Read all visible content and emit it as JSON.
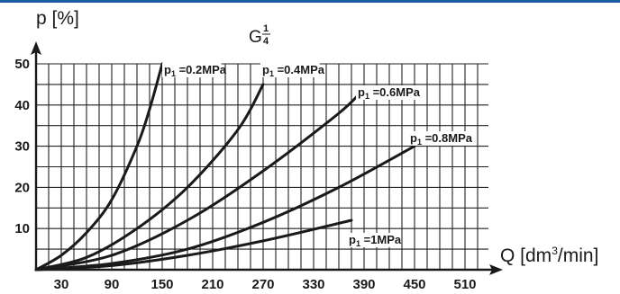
{
  "colors": {
    "accent_rule": "#1f5ca8",
    "ink": "#1a1a1a",
    "grid": "#222222"
  },
  "header": {
    "model_base": "G",
    "model_num": "1",
    "model_den": "4"
  },
  "chart_data": {
    "type": "line",
    "xlabel_main": "Q [dm",
    "xlabel_sup": "3",
    "xlabel_end": "/min]",
    "ylabel": "p [%]",
    "xlim": [
      0,
      560
    ],
    "ylim": [
      0,
      50
    ],
    "x_tick_values": [
      30,
      90,
      150,
      210,
      270,
      330,
      390,
      450,
      510
    ],
    "x_tick_labels": [
      "30",
      "90",
      "150",
      "210",
      "270",
      "330",
      "390",
      "450",
      "510"
    ],
    "y_tick_values": [
      10,
      20,
      30,
      40,
      50
    ],
    "y_tick_labels": [
      "10",
      "20",
      "30",
      "40",
      "50"
    ],
    "grid": true,
    "series": [
      {
        "name": "p₁=0.2MPa",
        "x": [
          0,
          30,
          60,
          90,
          120,
          135,
          150
        ],
        "y": [
          0,
          3.5,
          9,
          17,
          30,
          39,
          50
        ]
      },
      {
        "name": "p₁=0.4MPa",
        "x": [
          0,
          60,
          120,
          180,
          240,
          270
        ],
        "y": [
          0,
          3,
          10,
          20,
          34,
          45
        ]
      },
      {
        "name": "p₁=0.6MPa",
        "x": [
          0,
          90,
          180,
          270,
          360,
          390
        ],
        "y": [
          0,
          3.5,
          12,
          24,
          38,
          44
        ]
      },
      {
        "name": "p₁=0.8MPa",
        "x": [
          0,
          90,
          180,
          270,
          360,
          450
        ],
        "y": [
          0,
          1.5,
          5,
          11.5,
          20,
          30
        ]
      },
      {
        "name": "p₁=1MPa",
        "x": [
          0,
          90,
          180,
          270,
          375
        ],
        "y": [
          0,
          1,
          3.5,
          7,
          12
        ]
      }
    ],
    "series_labels": [
      {
        "sub": "p",
        "idx": "1",
        "rest": " =0.2MPa"
      },
      {
        "sub": "p",
        "idx": "1",
        "rest": " =0.4MPa"
      },
      {
        "sub": "p",
        "idx": "1",
        "rest": " =0.6MPa"
      },
      {
        "sub": "p",
        "idx": "1",
        "rest": " =0.8MPa"
      },
      {
        "sub": "p",
        "idx": "1",
        "rest": " =1MPa"
      }
    ]
  }
}
